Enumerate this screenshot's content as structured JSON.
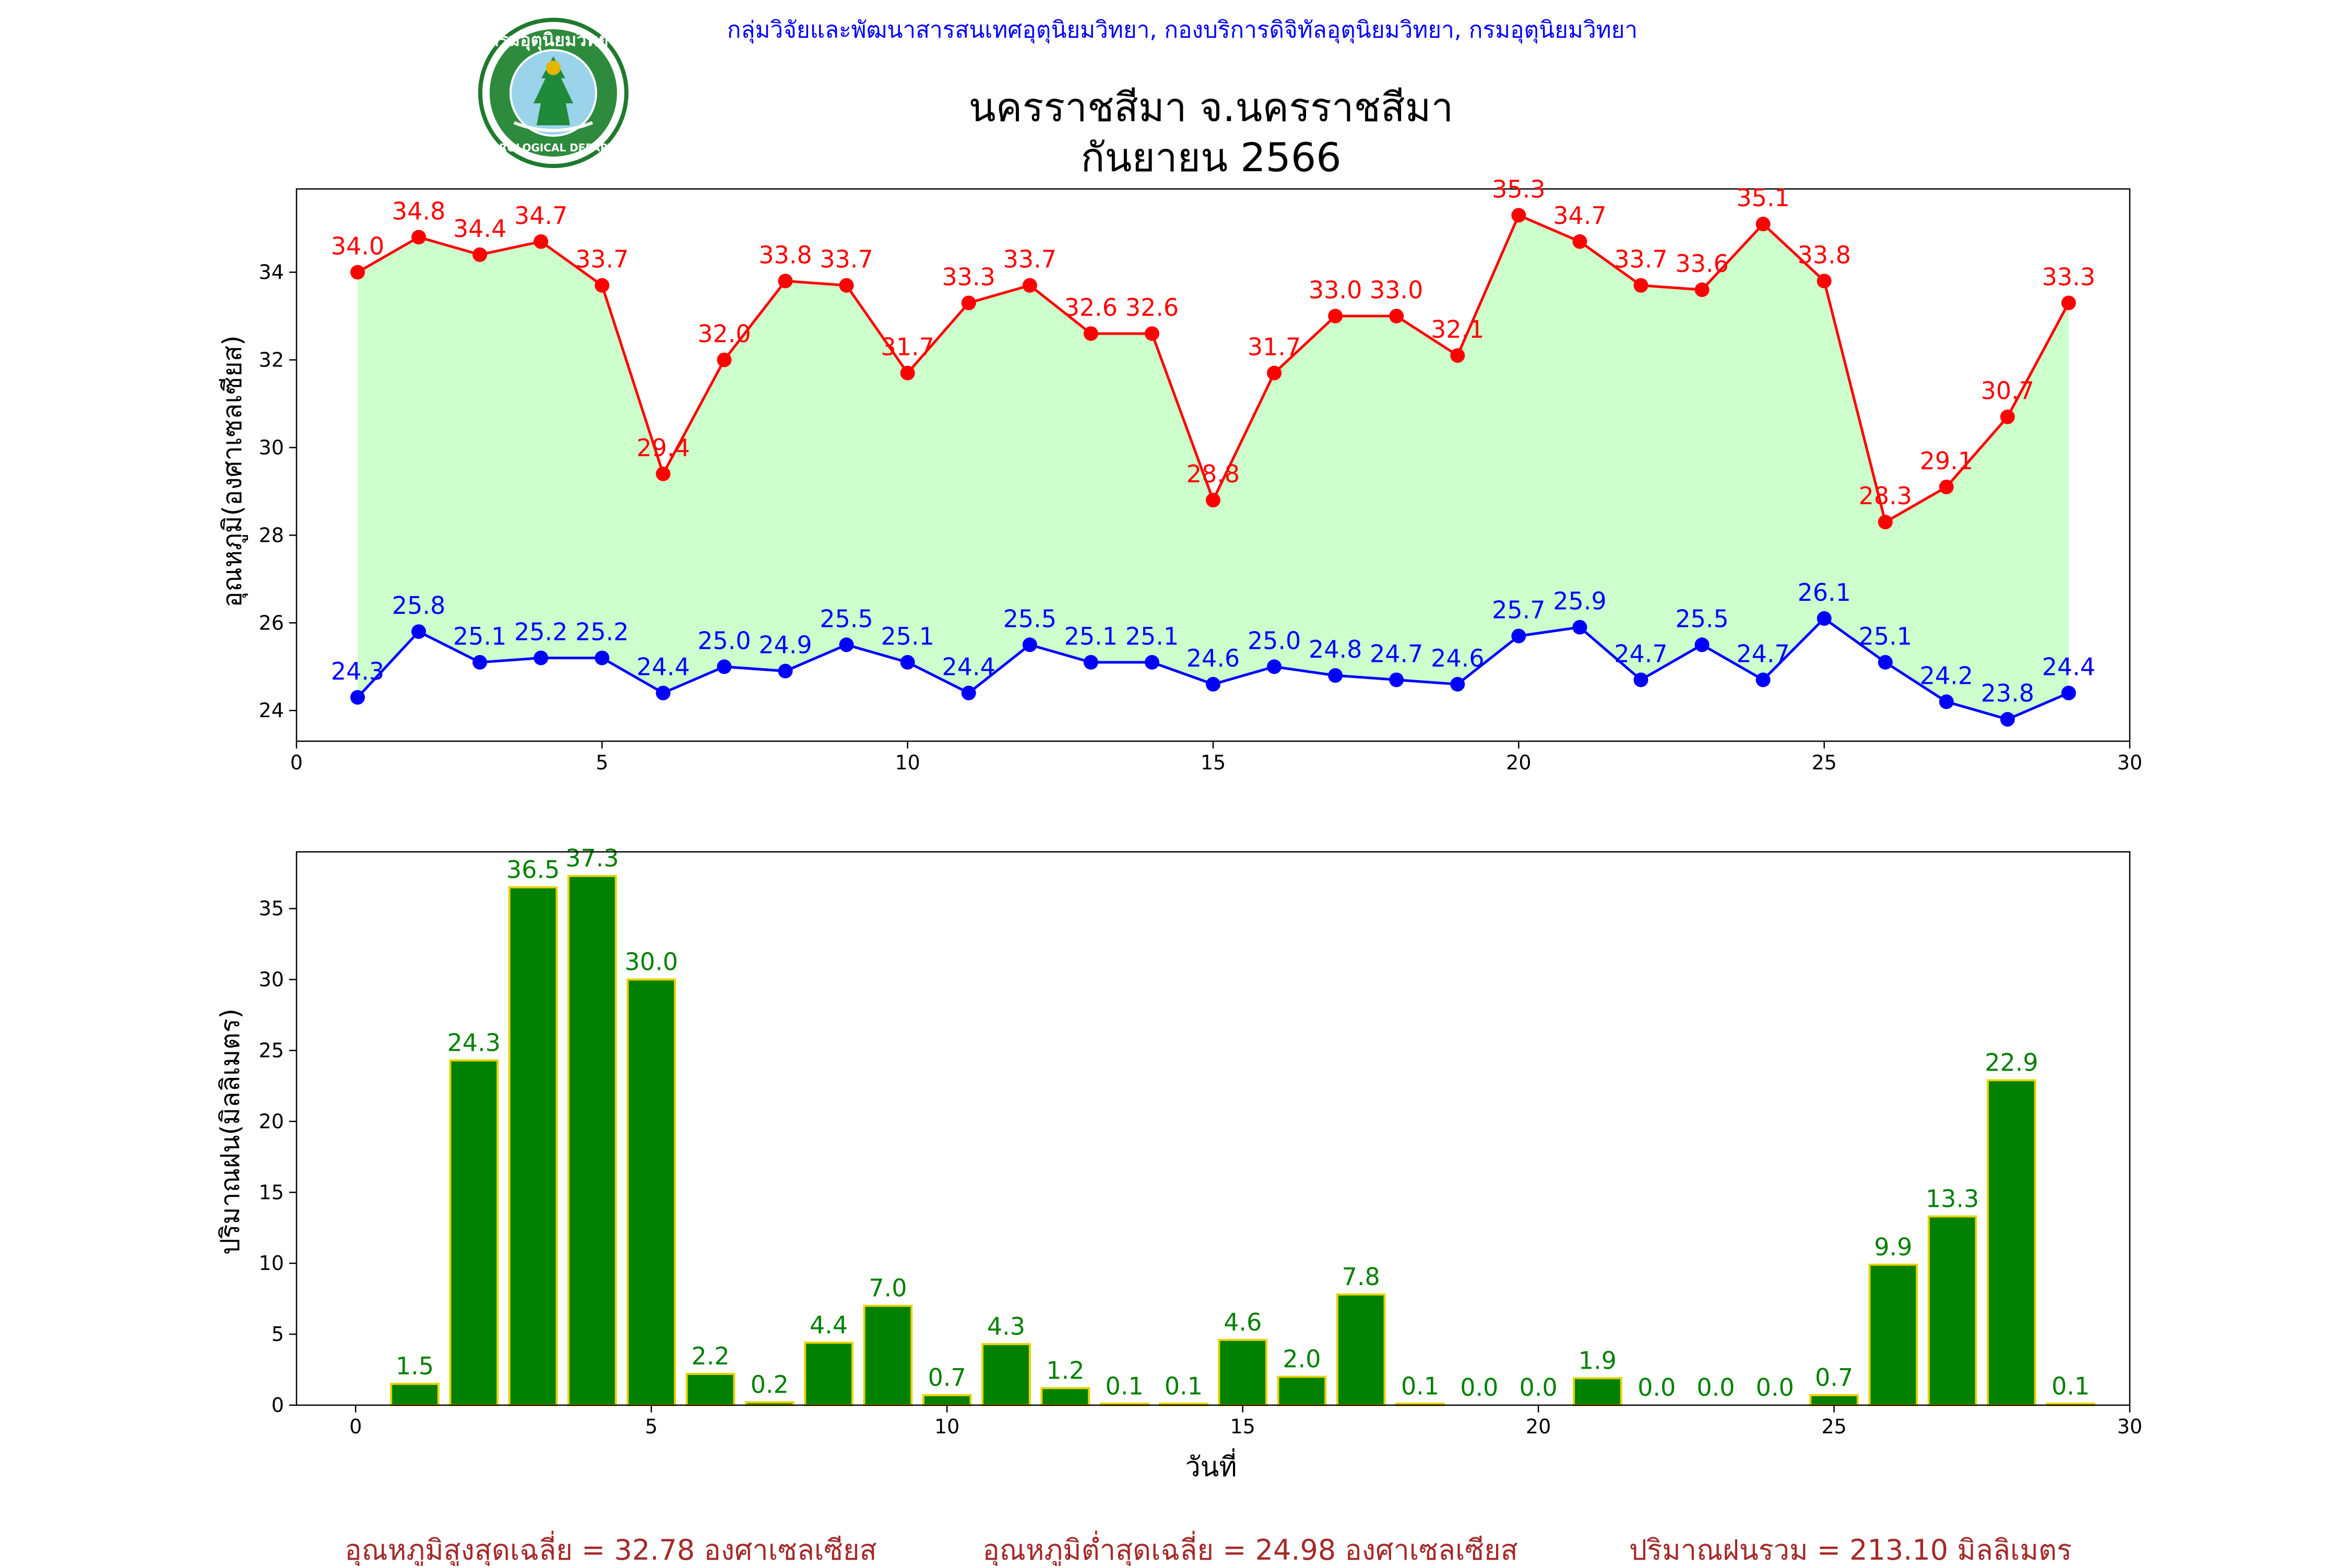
{
  "header": {
    "agency": "กลุ่มวิจัยและพัฒนาสารสนเทศอุตุนิยมวิทยา, กองบริการดิจิทัลอุตุนิยมวิทยา, กรมอุตุนิยมวิทยา",
    "title_line1": "นครราชสีมา จ.นครราชสีมา",
    "title_line2": "กันยายน 2566",
    "logo_text_top": "กรมอุตุนิยมวิทยา",
    "logo_text_bottom": "METEOROLOGICAL DEPARTMENT"
  },
  "colors": {
    "max_line": "#ff0000",
    "min_line": "#0000ff",
    "fill": "#ccffcc",
    "bar_fill": "#008000",
    "bar_edge": "#e6d200",
    "bar_label": "#008000",
    "footer_text": "#a52a2a",
    "agency_text": "#0000ff"
  },
  "chart_data": [
    {
      "type": "line",
      "ylabel": "อุณหภูมิ(องศาเซลเซียส)",
      "xlabel": "",
      "xlim": [
        0,
        30
      ],
      "ylim": [
        23.3,
        35.9
      ],
      "xticks": [
        0,
        5,
        10,
        15,
        20,
        25,
        30
      ],
      "yticks": [
        24,
        26,
        28,
        30,
        32,
        34
      ],
      "x": [
        1,
        2,
        3,
        4,
        5,
        6,
        7,
        8,
        9,
        10,
        11,
        12,
        13,
        14,
        15,
        16,
        17,
        18,
        19,
        20,
        21,
        22,
        23,
        24,
        25,
        26,
        27,
        28,
        29
      ],
      "series": [
        {
          "key": "max",
          "values": [
            34.0,
            34.8,
            34.4,
            34.7,
            33.7,
            29.4,
            32.0,
            33.8,
            33.7,
            31.7,
            33.3,
            33.7,
            32.6,
            32.6,
            28.8,
            31.7,
            33.0,
            33.0,
            32.1,
            35.3,
            34.7,
            33.7,
            33.6,
            35.1,
            33.8,
            28.3,
            29.1,
            30.7,
            33.3
          ]
        },
        {
          "key": "min",
          "values": [
            24.3,
            25.8,
            25.1,
            25.2,
            25.2,
            24.4,
            25.0,
            24.9,
            25.5,
            25.1,
            24.4,
            25.5,
            25.1,
            25.1,
            24.6,
            25.0,
            24.8,
            24.7,
            24.6,
            25.7,
            25.9,
            24.7,
            25.5,
            24.7,
            26.1,
            25.1,
            24.2,
            23.8,
            24.4
          ]
        }
      ],
      "grid": false,
      "fill_between": true
    },
    {
      "type": "bar",
      "ylabel": "ปริมาณฝน(มิลลิเมตร)",
      "xlabel": "วันที่",
      "xlim": [
        -1,
        30
      ],
      "ylim": [
        0,
        39
      ],
      "xticks": [
        0,
        5,
        10,
        15,
        20,
        25,
        30
      ],
      "yticks": [
        0,
        5,
        10,
        15,
        20,
        25,
        30,
        35
      ],
      "x": [
        1,
        2,
        3,
        4,
        5,
        6,
        7,
        8,
        9,
        10,
        11,
        12,
        13,
        14,
        15,
        16,
        17,
        18,
        19,
        20,
        21,
        22,
        23,
        24,
        25,
        26,
        27,
        28,
        29
      ],
      "values": [
        1.5,
        24.3,
        36.5,
        37.3,
        30.0,
        2.2,
        0.2,
        4.4,
        7.0,
        0.7,
        4.3,
        1.2,
        0.1,
        0.1,
        4.6,
        2.0,
        7.8,
        0.1,
        0.0,
        0.0,
        1.9,
        0.0,
        0.0,
        0.0,
        0.7,
        9.9,
        13.3,
        22.9,
        0.1
      ],
      "grid": false
    }
  ],
  "footer": {
    "avg_max": "อุณหภูมิสูงสุดเฉลี่ย = 32.78 องศาเซลเซียส",
    "avg_min": "อุณหภูมิต่ำสุดเฉลี่ย = 24.98 องศาเซลเซียส",
    "total_rain": "ปริมาณฝนรวม = 213.10 มิลลิเมตร"
  }
}
